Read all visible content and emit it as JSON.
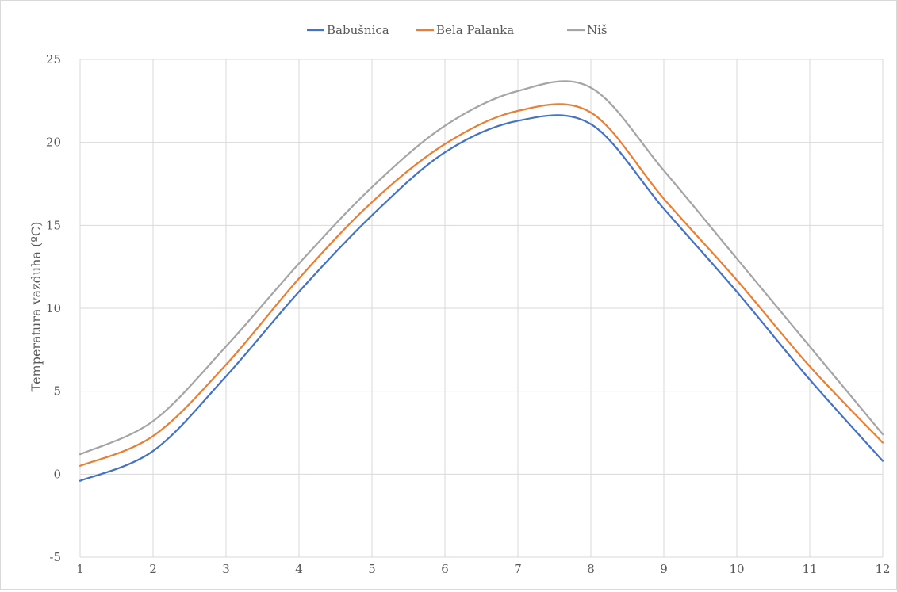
{
  "chart_data": {
    "type": "line",
    "title": "",
    "xlabel": "",
    "ylabel": "Temperatura vazduha (ºC)",
    "x": [
      1,
      2,
      3,
      4,
      5,
      6,
      7,
      8,
      9,
      10,
      11,
      12
    ],
    "xlim": [
      1,
      12
    ],
    "ylim": [
      -5,
      25
    ],
    "yticks": [
      -5,
      0,
      5,
      10,
      15,
      20,
      25
    ],
    "grid": true,
    "legend_position": "top",
    "smooth": true,
    "series": [
      {
        "name": "Babušnica",
        "color": "#4472c4",
        "values": [
          -0.4,
          1.4,
          5.9,
          11.0,
          15.6,
          19.4,
          21.3,
          21.1,
          16.0,
          11.0,
          5.7,
          0.8
        ]
      },
      {
        "name": "Bela Palanka",
        "color": "#ed7d31",
        "values": [
          0.5,
          2.3,
          6.6,
          11.8,
          16.4,
          19.9,
          21.9,
          21.8,
          16.6,
          11.7,
          6.5,
          1.9
        ]
      },
      {
        "name": "Niš",
        "color": "#a5a5a5",
        "values": [
          1.2,
          3.2,
          7.7,
          12.7,
          17.3,
          21.0,
          23.1,
          23.3,
          18.3,
          13.0,
          7.7,
          2.4
        ]
      }
    ]
  }
}
